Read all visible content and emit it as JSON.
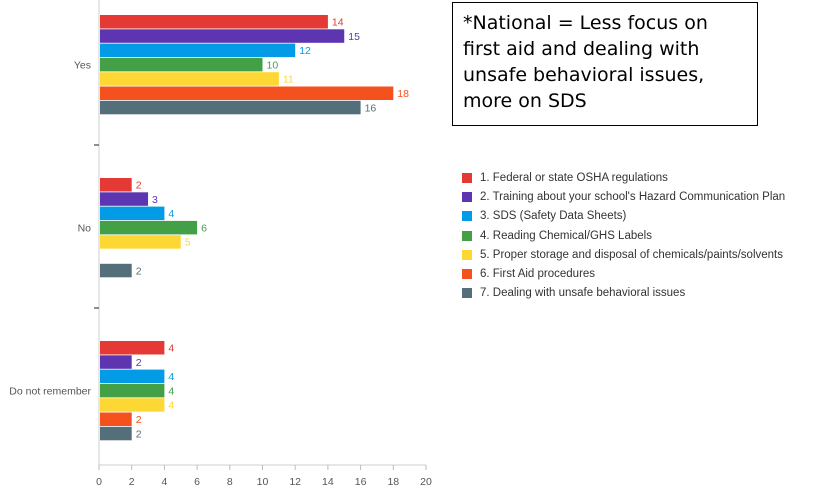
{
  "note": {
    "text": "*National = Less focus on first aid and dealing with unsafe behavioral issues, more on SDS"
  },
  "chart_data": {
    "type": "bar",
    "orientation": "horizontal",
    "title": "",
    "xlabel": "",
    "ylabel": "",
    "xlim": [
      0,
      20
    ],
    "x_ticks": [
      0,
      2,
      4,
      6,
      8,
      10,
      12,
      14,
      16,
      18,
      20
    ],
    "grid": false,
    "legend_position": "right",
    "categories": [
      "Yes",
      "No",
      "Do not remember"
    ],
    "series": [
      {
        "name": "1. Federal or state OSHA regulations",
        "color": "#e53935",
        "values": [
          14,
          2,
          4
        ]
      },
      {
        "name": "2. Training about your school's Hazard Communication Plan",
        "color": "#5e35b1",
        "values": [
          15,
          3,
          2
        ]
      },
      {
        "name": "3. SDS (Safety Data Sheets)",
        "color": "#039be5",
        "values": [
          12,
          4,
          4
        ]
      },
      {
        "name": "4. Reading Chemical/GHS Labels",
        "color": "#43a047",
        "values": [
          10,
          6,
          4
        ]
      },
      {
        "name": "5. Proper storage and disposal of chemicals/paints/solvents",
        "color": "#fdd835",
        "values": [
          11,
          5,
          4
        ]
      },
      {
        "name": "6. First Aid procedures",
        "color": "#f4511e",
        "values": [
          18,
          null,
          2
        ]
      },
      {
        "name": "7. Dealing with unsafe behavioral issues",
        "color": "#546e7a",
        "values": [
          16,
          2,
          2
        ]
      }
    ]
  }
}
